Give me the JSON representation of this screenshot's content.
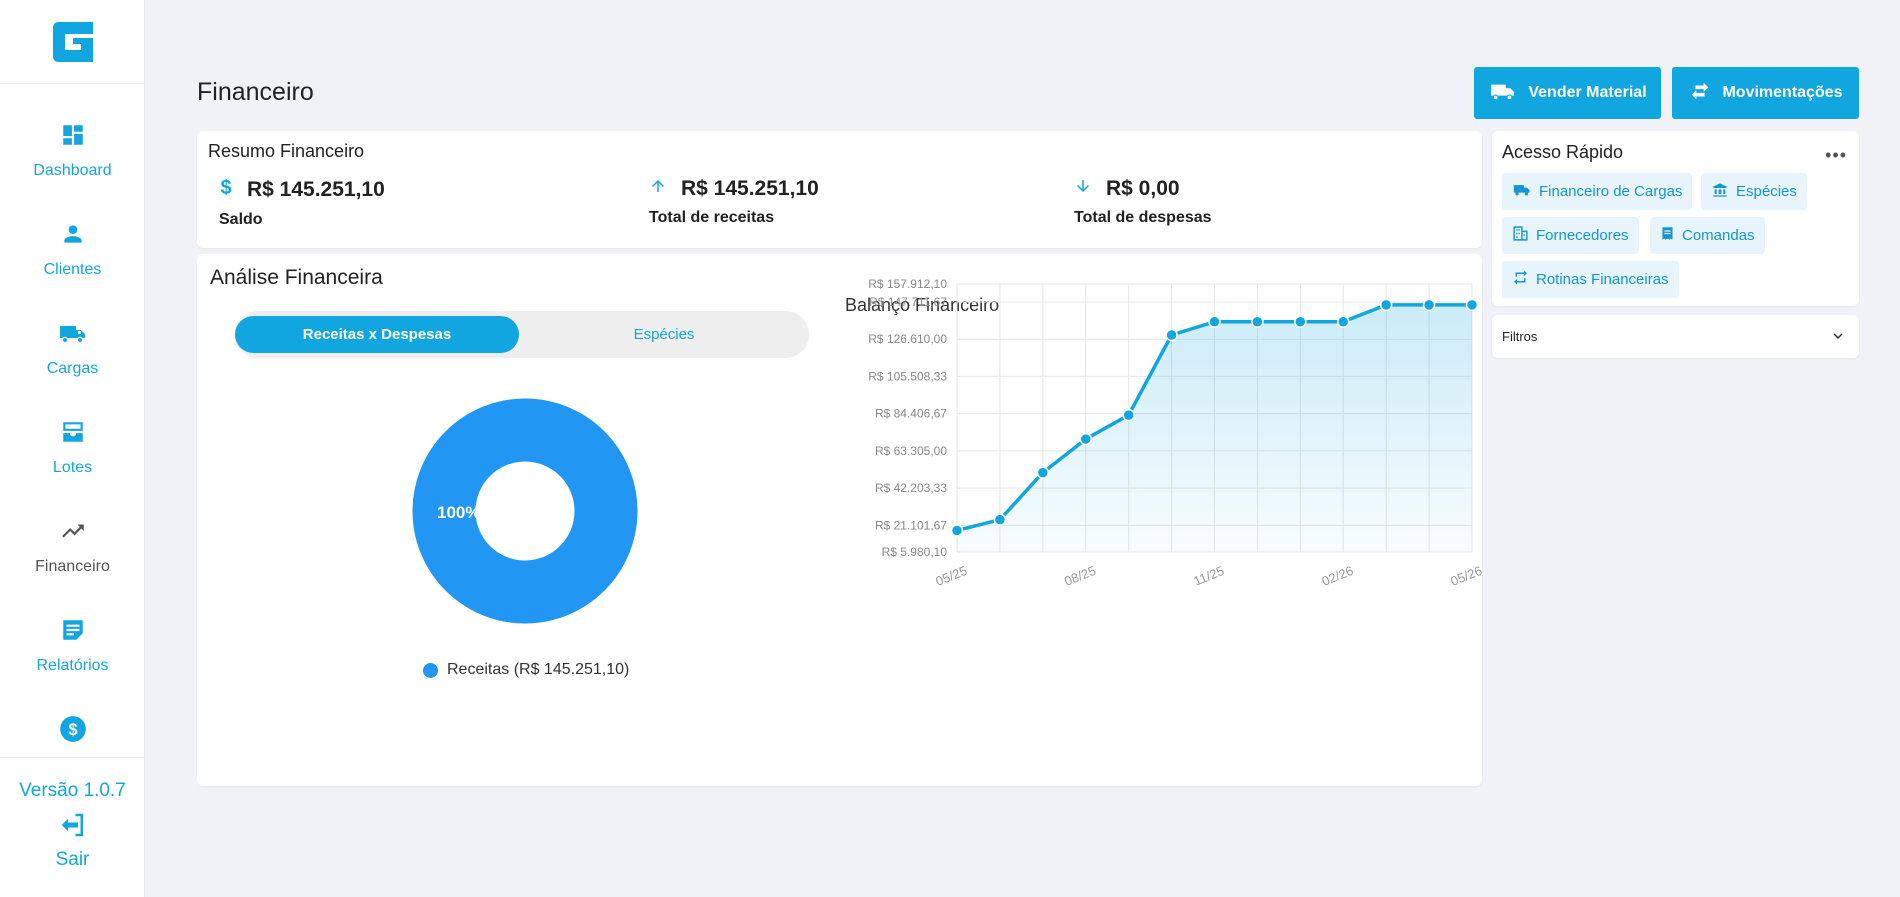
{
  "sidebar": {
    "logo_name": "app-logo",
    "items": [
      {
        "label": "Dashboard",
        "icon": "dashboard-icon"
      },
      {
        "label": "Clientes",
        "icon": "person-icon"
      },
      {
        "label": "Cargas",
        "icon": "truck-icon"
      },
      {
        "label": "Lotes",
        "icon": "inbox-tray-icon"
      },
      {
        "label": "Financeiro",
        "icon": "trending-up-icon"
      },
      {
        "label": "Relatórios",
        "icon": "note-icon"
      },
      {
        "label": "",
        "icon": "dollar-coin-icon"
      }
    ],
    "version": "Versão 1.0.7",
    "logout_label": "Sair"
  },
  "header": {
    "title": "Financeiro",
    "buttons": [
      {
        "label": "Vender Material",
        "icon": "truck-icon"
      },
      {
        "label": "Movimentações",
        "icon": "swap-arrows-icon"
      }
    ]
  },
  "resumo": {
    "title": "Resumo Financeiro",
    "stats": [
      {
        "icon": "dollar-icon",
        "value": "R$ 145.251,10",
        "label": "Saldo"
      },
      {
        "icon": "arrow-up-icon",
        "value": "R$ 145.251,10",
        "label": "Total de receitas"
      },
      {
        "icon": "arrow-down-icon",
        "value": "R$ 0,00",
        "label": "Total de despesas"
      }
    ]
  },
  "analise": {
    "title": "Análise Financeira",
    "tabs": [
      "Receitas x Despesas",
      "Espécies"
    ],
    "active_tab": 0,
    "donut_label": "100%",
    "legend_label": "Receitas (R$ 145.251,10)"
  },
  "acesso": {
    "title": "Acesso Rápido",
    "more": "•••",
    "chips": [
      {
        "label": "Financeiro de Cargas",
        "icon": "truck-icon"
      },
      {
        "label": "Espécies",
        "icon": "bank-icon"
      },
      {
        "label": "Fornecedores",
        "icon": "building-icon"
      },
      {
        "label": "Comandas",
        "icon": "receipt-icon"
      },
      {
        "label": "Rotinas Financeiras",
        "icon": "repeat-icon"
      }
    ]
  },
  "filtros": {
    "label": "Filtros"
  },
  "colors": {
    "accent": "#12a6e0",
    "donut": "#2196f3",
    "background": "#f1f2f7"
  },
  "chart_data": [
    {
      "type": "pie",
      "variant": "donut",
      "labels": [
        "Receitas (R$ 145.251,10)"
      ],
      "values": [
        145251.1
      ],
      "percent_labels": [
        "100%"
      ]
    },
    {
      "type": "area",
      "title": "Balanço Financeiro",
      "x_tick_labels": [
        "05/25",
        "08/25",
        "11/25",
        "02/26",
        "05/26"
      ],
      "y_tick_labels": [
        "R$ 157.912,10",
        "R$ 147.711,67",
        "R$ 126.610,00",
        "R$ 105.508,33",
        "R$ 84.406,67",
        "R$ 63.305,00",
        "R$ 42.203,33",
        "R$ 21.101,67",
        "R$ 5.980,10"
      ],
      "y_ticks": [
        157912.1,
        147711.67,
        126610.0,
        105508.33,
        84406.67,
        63305.0,
        42203.33,
        21101.67,
        5980.1
      ],
      "ylim": [
        5980.1,
        157912.1
      ],
      "grid": true,
      "series": [
        {
          "values": [
            18200,
            24300,
            51000,
            70000,
            83600,
            129000,
            136500,
            136500,
            136500,
            136500,
            146100,
            146100,
            146100
          ]
        }
      ]
    }
  ]
}
